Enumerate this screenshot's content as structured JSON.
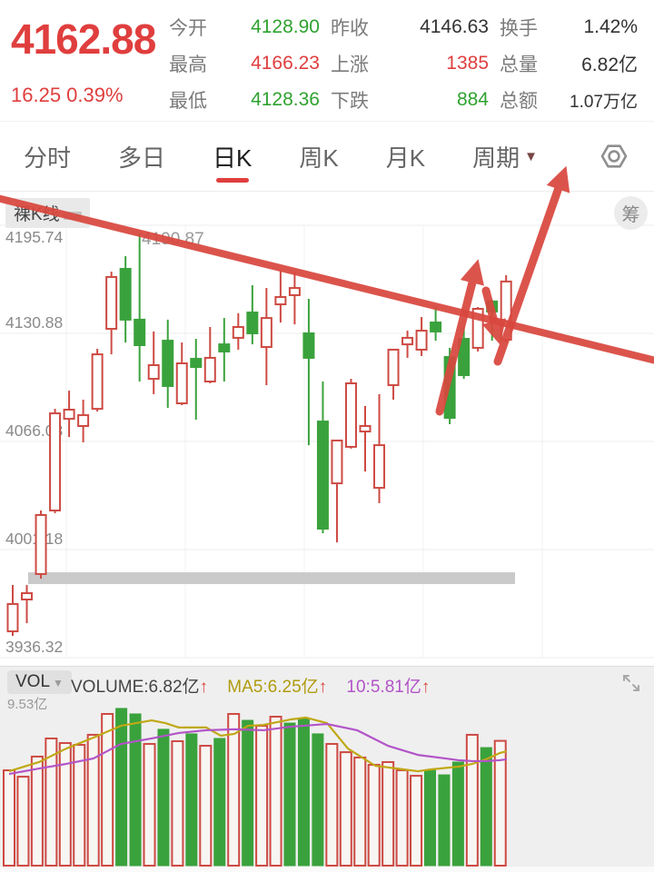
{
  "header": {
    "price": "4162.88",
    "change": "16.25 0.39%",
    "stats": [
      {
        "label": "今开",
        "value": "4128.90",
        "color": "green"
      },
      {
        "label": "昨收",
        "value": "4146.63",
        "color": "dark"
      },
      {
        "label": "换手",
        "value": "1.42%",
        "color": "dark"
      },
      {
        "label": "最高",
        "value": "4166.23",
        "color": "red"
      },
      {
        "label": "上涨",
        "value": "1385",
        "color": "red"
      },
      {
        "label": "总量",
        "value": "6.82亿",
        "color": "dark"
      },
      {
        "label": "最低",
        "value": "4128.36",
        "color": "green"
      },
      {
        "label": "下跌",
        "value": "884",
        "color": "green"
      },
      {
        "label": "总额",
        "value": "1.07万亿",
        "color": "dark",
        "small": true
      }
    ]
  },
  "tabs": {
    "items": [
      {
        "key": "tab-minute",
        "label": "分时",
        "selected": false
      },
      {
        "key": "tab-multiday",
        "label": "多日",
        "selected": false
      },
      {
        "key": "tab-daily-k",
        "label": "日K",
        "selected": true
      },
      {
        "key": "tab-weekly-k",
        "label": "周K",
        "selected": false
      },
      {
        "key": "tab-monthly-k",
        "label": "月K",
        "selected": false
      }
    ],
    "period_label": "周期",
    "period_caret": "▼"
  },
  "kchart": {
    "badge": "裸K线",
    "chip_badge": "筹",
    "high_annotation": "4190.87"
  },
  "volume_header": {
    "selector": "VOL",
    "selector_caret": "▼",
    "volume_label": "VOLUME:",
    "volume_value": "6.82亿",
    "ma5_label": "MA5:",
    "ma5_value": "6.25亿",
    "ma10_label": "10:",
    "ma10_value": "5.81亿",
    "up_arrow": "↑",
    "max_label": "9.53亿"
  },
  "colors": {
    "up": "#cd4a43",
    "down": "#3aa23c",
    "price_red": "#e03e3e",
    "ma5": "#c0a816",
    "ma10": "#b254c8",
    "annotation": "#d9483f",
    "grid": "#ededed",
    "support_bar": "#c9c9c9",
    "axis_text": "#8a8a8a"
  },
  "chart_data": [
    {
      "type": "candlestick",
      "title": "裸K线 daily K-line",
      "ylabel": "price",
      "axis_ticks": [
        4195.74,
        4130.88,
        4066.03,
        4001.18,
        3936.32
      ],
      "ylim": [
        3936.32,
        4195.74
      ],
      "grid": true,
      "note": "red hollow = up, green solid = down; high of bar 10 labeled 4190.87; gray support bar near 3985; hand-drawn red descending trendline and three red arrows",
      "candles": [
        [
          3952.1,
          3979.9,
          3949.4,
          3968.5
        ],
        [
          3971.2,
          3979.9,
          3957.0,
          3975.0
        ],
        [
          3986.5,
          4024.6,
          3983.7,
          4021.9
        ],
        [
          4024.6,
          4085.6,
          4023.0,
          4082.9
        ],
        [
          4079.6,
          4096.5,
          4068.7,
          4085.1
        ],
        [
          4075.3,
          4091.1,
          4065.5,
          4081.8
        ],
        [
          4085.6,
          4121.6,
          4084.0,
          4118.3
        ],
        [
          4133.6,
          4167.9,
          4118.3,
          4164.7
        ],
        [
          4169.6,
          4177.2,
          4125.4,
          4139.1
        ],
        [
          4139.1,
          4190.87,
          4102.0,
          4123.8
        ],
        [
          4103.6,
          4132.0,
          4094.4,
          4111.8
        ],
        [
          4126.5,
          4139.1,
          4086.2,
          4099.3
        ],
        [
          4088.9,
          4125.4,
          4087.8,
          4112.9
        ],
        [
          4115.6,
          4127.6,
          4079.1,
          4110.7
        ],
        [
          4102.0,
          4134.7,
          4100.9,
          4116.2
        ],
        [
          4124.3,
          4140.1,
          4102.0,
          4120.0
        ],
        [
          4128.2,
          4142.9,
          4121.1,
          4134.7
        ],
        [
          4143.4,
          4159.8,
          4124.3,
          4130.9
        ],
        [
          4122.7,
          4158.1,
          4099.8,
          4140.1
        ],
        [
          4148.3,
          4169.0,
          4137.4,
          4152.7
        ],
        [
          4153.8,
          4167.9,
          4136.3,
          4158.1
        ],
        [
          4130.9,
          4151.6,
          4063.8,
          4116.2
        ],
        [
          4078.0,
          4102.0,
          4011.0,
          4013.7
        ],
        [
          4040.9,
          4066.6,
          4005.5,
          4066.6
        ],
        [
          4062.8,
          4103.6,
          4061.7,
          4100.9
        ],
        [
          4072.0,
          4087.3,
          4048.0,
          4075.3
        ],
        [
          4038.2,
          4094.4,
          4029.0,
          4063.8
        ],
        [
          4099.8,
          4121.1,
          4091.1,
          4121.1
        ],
        [
          4124.3,
          4132.5,
          4116.2,
          4128.2
        ],
        [
          4121.1,
          4140.7,
          4117.3,
          4132.5
        ],
        [
          4137.4,
          4147.2,
          4126.5,
          4132.0
        ],
        [
          4116.7,
          4122.2,
          4076.4,
          4080.2
        ],
        [
          4127.6,
          4134.7,
          4103.6,
          4105.8
        ],
        [
          4122.2,
          4146.7,
          4120.0,
          4145.6
        ],
        [
          4150.0,
          4151.1,
          4126.5,
          4144.0
        ],
        [
          4127.1,
          4165.8,
          4125.4,
          4162.0
        ]
      ],
      "support_bar_price_span": [
        3987.5,
        3980.5
      ],
      "support_bar_x_span": [
        31,
        567
      ]
    },
    {
      "type": "bar",
      "title": "VOLUME (亿)",
      "ylim": [
        0,
        9.53
      ],
      "values": [
        5.21,
        4.86,
        5.96,
        6.95,
        6.7,
        6.6,
        7.15,
        8.29,
        8.59,
        8.29,
        6.65,
        7.45,
        6.8,
        7.2,
        6.55,
        6.95,
        8.29,
        7.94,
        7.64,
        8.14,
        7.79,
        8.04,
        7.2,
        6.65,
        6.2,
        5.91,
        5.51,
        5.66,
        5.21,
        4.91,
        5.21,
        4.96,
        5.66,
        7.15,
        6.45,
        6.82
      ],
      "bar_colors": [
        "u",
        "u",
        "u",
        "u",
        "u",
        "u",
        "u",
        "u",
        "d",
        "d",
        "u",
        "d",
        "u",
        "d",
        "u",
        "d",
        "u",
        "d",
        "u",
        "u",
        "d",
        "d",
        "d",
        "u",
        "u",
        "u",
        "u",
        "u",
        "u",
        "u",
        "d",
        "d",
        "d",
        "u",
        "d",
        "u"
      ],
      "series": [
        {
          "name": "MA5",
          "points": [
            [
              10,
              5.16
            ],
            [
              43,
              5.66
            ],
            [
              73,
              6.4
            ],
            [
              103,
              7.0
            ],
            [
              133,
              7.64
            ],
            [
              167,
              7.94
            ],
            [
              182,
              7.79
            ],
            [
              197,
              7.55
            ],
            [
              227,
              7.55
            ],
            [
              243,
              7.1
            ],
            [
              258,
              7.2
            ],
            [
              273,
              7.64
            ],
            [
              290,
              7.69
            ],
            [
              320,
              7.99
            ],
            [
              337,
              8.09
            ],
            [
              360,
              7.79
            ],
            [
              383,
              6.4
            ],
            [
              413,
              5.46
            ],
            [
              444,
              5.26
            ],
            [
              460,
              5.16
            ],
            [
              475,
              5.26
            ],
            [
              505,
              5.41
            ],
            [
              520,
              5.56
            ],
            [
              535,
              5.81
            ],
            [
              550,
              6.15
            ],
            [
              558,
              6.25
            ]
          ]
        },
        {
          "name": "MA10",
          "points": [
            [
              10,
              5.01
            ],
            [
              43,
              5.31
            ],
            [
              73,
              5.56
            ],
            [
              103,
              5.86
            ],
            [
              133,
              6.65
            ],
            [
              167,
              6.95
            ],
            [
              197,
              7.25
            ],
            [
              227,
              7.4
            ],
            [
              258,
              7.45
            ],
            [
              290,
              7.4
            ],
            [
              320,
              7.59
            ],
            [
              360,
              7.74
            ],
            [
              393,
              7.4
            ],
            [
              427,
              6.55
            ],
            [
              460,
              6.05
            ],
            [
              490,
              5.86
            ],
            [
              505,
              5.76
            ],
            [
              520,
              5.71
            ],
            [
              535,
              5.71
            ],
            [
              550,
              5.76
            ],
            [
              558,
              5.81
            ]
          ]
        }
      ]
    }
  ],
  "annotations": {
    "trendline": {
      "from": [
        -3,
        218
      ],
      "to": [
        722,
        397
      ]
    },
    "arrows": [
      {
        "name": "up-arrow",
        "from": [
          484,
          453
        ],
        "to": [
          521,
          307
        ]
      },
      {
        "name": "down-arrow",
        "from": [
          535,
          320
        ],
        "to": [
          545,
          358
        ]
      },
      {
        "name": "big-up-arrow",
        "from": [
          548,
          398
        ],
        "to": [
          616,
          204
        ]
      }
    ]
  }
}
